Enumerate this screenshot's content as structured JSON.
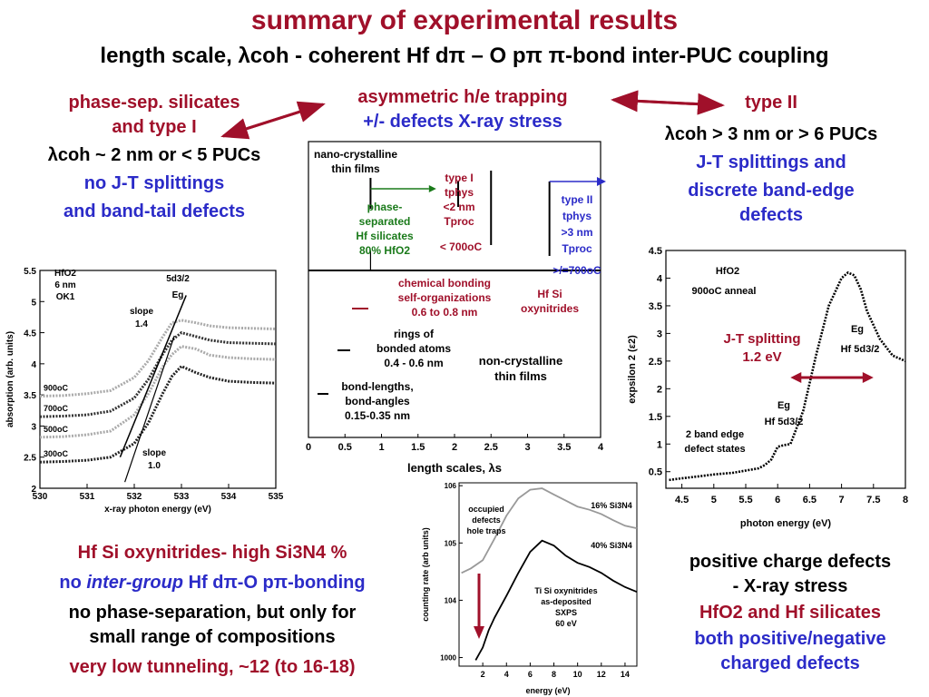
{
  "slide": {
    "title": "summary of experimental results",
    "subtitle": "length scale, λcoh - coherent Hf dπ – O pπ π-bond inter-PUC coupling"
  },
  "colors": {
    "title_red": "#a0102a",
    "blue": "#2b2bc8",
    "green": "#1a7a1a"
  },
  "left_block": {
    "line1": "phase-sep. silicates",
    "line2": "and type I",
    "line3": "λcoh ~ 2 nm or < 5 PUCs",
    "line4": "no J-T splittings",
    "line5": "and band-tail defects"
  },
  "center_block": {
    "line1": "asymmetric h/e trapping",
    "line2": "+/- defects X-ray stress"
  },
  "right_block": {
    "line1": "type II",
    "line2": "λcoh > 3 nm or > 6 PUCs",
    "line3": "J-T splittings and",
    "line4": "discrete band-edge",
    "line5": "defects"
  },
  "xas_chart": {
    "chart_data": {
      "type": "line",
      "xlabel": "x-ray photon energy (eV)",
      "ylabel": "absorption (arb. units)",
      "xlim": [
        530,
        535
      ],
      "ylim": [
        2,
        5.5
      ],
      "xticks": [
        "530",
        "531",
        "532",
        "533",
        "534",
        "535"
      ],
      "yticks": [
        "2",
        "2.5",
        "3",
        "3.5",
        "4",
        "4.5",
        "5",
        "5.5"
      ],
      "annotations": [
        "HfO2",
        "6 nm",
        "OK1",
        "5d3/2",
        "Eg",
        "slope",
        "1.4",
        "slope",
        "1.0"
      ],
      "series": [
        {
          "name": "900oC",
          "x": [
            530,
            530.5,
            531,
            531.5,
            532,
            532.3,
            532.6,
            532.8,
            533,
            533.3,
            533.6,
            534,
            534.5,
            535
          ],
          "y": [
            3.48,
            3.49,
            3.52,
            3.57,
            3.78,
            4.05,
            4.43,
            4.66,
            4.7,
            4.66,
            4.61,
            4.58,
            4.57,
            4.56
          ]
        },
        {
          "name": "700oC",
          "x": [
            530,
            530.5,
            531,
            531.5,
            532,
            532.3,
            532.6,
            532.8,
            533,
            533.3,
            533.6,
            534,
            534.5,
            535
          ],
          "y": [
            3.15,
            3.16,
            3.18,
            3.24,
            3.45,
            3.75,
            4.15,
            4.38,
            4.5,
            4.44,
            4.38,
            4.34,
            4.33,
            4.32
          ]
        },
        {
          "name": "500oC",
          "x": [
            530,
            530.5,
            531,
            531.5,
            532,
            532.3,
            532.6,
            532.8,
            533,
            533.3,
            533.6,
            534,
            534.5,
            535
          ],
          "y": [
            2.82,
            2.83,
            2.86,
            2.92,
            3.18,
            3.52,
            3.95,
            4.15,
            4.28,
            4.24,
            4.14,
            4.1,
            4.08,
            4.07
          ]
        },
        {
          "name": "300oC",
          "x": [
            530,
            530.5,
            531,
            531.5,
            532,
            532.3,
            532.6,
            532.8,
            533,
            533.3,
            533.6,
            534,
            534.5,
            535
          ],
          "y": [
            2.42,
            2.43,
            2.45,
            2.5,
            2.72,
            3.05,
            3.52,
            3.8,
            3.96,
            3.86,
            3.78,
            3.72,
            3.7,
            3.69
          ]
        }
      ]
    }
  },
  "center_diagram": {
    "chart_data": {
      "type": "diagram",
      "xlabel": "length scales, λs",
      "xlim": [
        0,
        4
      ],
      "xticks": [
        "0",
        "0.5",
        "1",
        "1.5",
        "2",
        "2.5",
        "3",
        "3.5",
        "4"
      ],
      "labels": {
        "nano": "nano-crystalline",
        "nano2": "thin films",
        "phase1": "phase-",
        "phase2": "separated",
        "phase3": "Hf silicates",
        "phase4": "80% HfO2",
        "type1a": "type I",
        "type1b": "tphys",
        "type1c": "<2 nm",
        "type1d": "Tproc",
        "type1e": "< 700oC",
        "type2a": "type II",
        "type2b": "tphys",
        "type2c": ">3 nm",
        "type2d": "Tproc",
        "type2e": ">/=700oC",
        "chem1": "chemical bonding",
        "chem2": "self-organizations",
        "chem3": "0.6 to 0.8 nm",
        "hfsi1": "Hf Si",
        "hfsi2": "oxynitrides",
        "rings1": "rings of",
        "rings2": "bonded atoms",
        "rings3": "0.4 - 0.6 nm",
        "bond1": "bond-lengths,",
        "bond2": "bond-angles",
        "bond3": "0.15-0.35 nm",
        "nonc1": "non-crystalline",
        "nonc2": "thin films"
      }
    }
  },
  "eps_chart": {
    "chart_data": {
      "type": "line",
      "xlabel": "photon energy (eV)",
      "ylabel": "expsilon 2 (ε2)",
      "xlim": [
        4.25,
        8
      ],
      "ylim": [
        0.2,
        4.5
      ],
      "xticks": [
        "4.5",
        "5",
        "5.5",
        "6",
        "6.5",
        "7",
        "7.5",
        "8"
      ],
      "yticks": [
        "0.5",
        "1",
        "1.5",
        "2",
        "2.5",
        "3",
        "3.5",
        "4",
        "4.5"
      ],
      "annotations": [
        "HfO2",
        "900oC anneal",
        "J-T splitting",
        "1.2 eV",
        "Eg",
        "Hf 5d3/2",
        "Eg",
        "Hf 5d3/2",
        "2 band edge",
        "defect states"
      ],
      "series": [
        {
          "name": "HfO2 900oC anneal",
          "x": [
            4.3,
            4.5,
            4.8,
            5.0,
            5.3,
            5.5,
            5.7,
            5.8,
            5.9,
            6.0,
            6.1,
            6.2,
            6.4,
            6.6,
            6.8,
            7.0,
            7.1,
            7.2,
            7.3,
            7.4,
            7.6,
            7.8,
            8.0
          ],
          "y": [
            0.35,
            0.38,
            0.42,
            0.45,
            0.48,
            0.52,
            0.56,
            0.62,
            0.72,
            0.95,
            0.98,
            1.0,
            1.6,
            2.6,
            3.5,
            4.0,
            4.1,
            4.05,
            3.8,
            3.4,
            2.9,
            2.6,
            2.5
          ]
        }
      ]
    }
  },
  "xps_chart": {
    "chart_data": {
      "type": "line",
      "xlabel": "energy (eV)",
      "ylabel": "counting rate (arb units)",
      "scale_y": "log",
      "xlim": [
        0,
        15
      ],
      "xticks": [
        "2",
        "4",
        "6",
        "8",
        "10",
        "12",
        "14"
      ],
      "yticks": [
        "1000",
        "104",
        "105",
        "106"
      ],
      "annotations": [
        "occupied",
        "defects",
        "hole traps",
        "Ti Si oxynitrides",
        "as-deposited",
        "SXPS",
        "60 eV"
      ],
      "series": [
        {
          "name": "16% Si3N4",
          "x": [
            0.2,
            1,
            2,
            3,
            4,
            5,
            6,
            7,
            8,
            9,
            10,
            11,
            12,
            13,
            14,
            15
          ],
          "y": [
            30000,
            36000,
            50000,
            120000,
            300000,
            600000,
            850000,
            900000,
            700000,
            550000,
            430000,
            380000,
            320000,
            250000,
            200000,
            180000
          ]
        },
        {
          "name": "40% Si3N4",
          "x": [
            1.4,
            2,
            2.5,
            3,
            4,
            5,
            6,
            7,
            8,
            9,
            10,
            11,
            12,
            13,
            14,
            15
          ],
          "y": [
            900,
            1500,
            3000,
            5000,
            12000,
            30000,
            70000,
            110000,
            90000,
            60000,
            45000,
            38000,
            30000,
            22000,
            17000,
            14000
          ]
        }
      ]
    }
  },
  "bottom_left": {
    "line1": "Hf Si oxynitrides- high Si3N4 %",
    "line2a": "no ",
    "line2b": "inter-group",
    "line2c": " Hf dπ-O pπ-bonding",
    "line3": "no phase-separation, but only for",
    "line4": "small range of compositions",
    "line5": "very low tunneling, ~12 (to 16-18)"
  },
  "bottom_right": {
    "line1": "positive charge defects",
    "line2": "- X-ray stress",
    "line3": "HfO2 and Hf silicates",
    "line4": "both positive/negative",
    "line5": "charged defects"
  }
}
